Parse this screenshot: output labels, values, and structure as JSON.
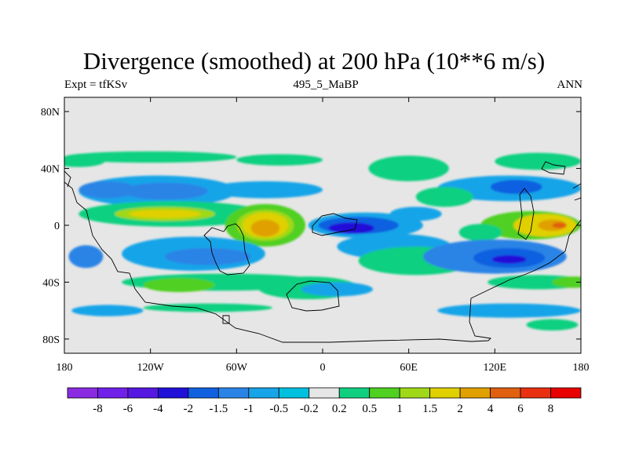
{
  "chart_data": {
    "type": "heatmap",
    "title": "Divergence (smoothed) at 200 hPa (10**6 m/s)",
    "subtitle_left": "Expt = tfKSv",
    "subtitle_center": "495_5_MaBP",
    "subtitle_right": "ANN",
    "xlim": [
      -180,
      180
    ],
    "ylim": [
      -90,
      90
    ],
    "x_ticks": [
      {
        "value": -180,
        "label": "180"
      },
      {
        "value": -120,
        "label": "120W"
      },
      {
        "value": -60,
        "label": "60W"
      },
      {
        "value": 0,
        "label": "0"
      },
      {
        "value": 60,
        "label": "60E"
      },
      {
        "value": 120,
        "label": "120E"
      },
      {
        "value": 180,
        "label": "180"
      }
    ],
    "y_ticks": [
      {
        "value": 80,
        "label": "80N"
      },
      {
        "value": 40,
        "label": "40N"
      },
      {
        "value": 0,
        "label": "0"
      },
      {
        "value": -40,
        "label": "40S"
      },
      {
        "value": -80,
        "label": "80S"
      }
    ],
    "colorbar": {
      "colors": [
        "#8a2be2",
        "#7020e8",
        "#5418e0",
        "#2010d8",
        "#1060e0",
        "#2a84e6",
        "#18a4e8",
        "#00c0e0",
        "#e6e6e6",
        "#10d080",
        "#50d020",
        "#a0d818",
        "#e0d000",
        "#e0a000",
        "#e06010",
        "#e83010",
        "#e80000"
      ],
      "labels": [
        "-8",
        "-6",
        "-4",
        "-2",
        "-1.5",
        "-1",
        "-0.5",
        "-0.2",
        "0.2",
        "0.5",
        "1",
        "1.5",
        "2",
        "4",
        "6",
        "8"
      ]
    },
    "field_blobs": [
      {
        "lon": -170,
        "lat": 45,
        "rlon": 18,
        "rlat": 4,
        "value": 0.5
      },
      {
        "lon": -120,
        "lat": 48,
        "rlon": 60,
        "rlat": 4,
        "value": 0.5
      },
      {
        "lon": -30,
        "lat": 46,
        "rlon": 30,
        "rlat": 4,
        "value": 0.5
      },
      {
        "lon": 60,
        "lat": 40,
        "rlon": 28,
        "rlat": 9,
        "value": 0.5
      },
      {
        "lon": 150,
        "lat": 45,
        "rlon": 30,
        "rlat": 6,
        "value": 0.5
      },
      {
        "lon": -115,
        "lat": 24,
        "rlon": 55,
        "rlat": 11,
        "value": -0.5
      },
      {
        "lon": -110,
        "lat": 24,
        "rlon": 30,
        "rlat": 6,
        "value": -1
      },
      {
        "lon": -150,
        "lat": 25,
        "rlon": 20,
        "rlat": 6,
        "value": -1
      },
      {
        "lon": -40,
        "lat": 25,
        "rlon": 40,
        "rlat": 6,
        "value": -0.5
      },
      {
        "lon": 130,
        "lat": 26,
        "rlon": 50,
        "rlat": 9,
        "value": -0.5
      },
      {
        "lon": 135,
        "lat": 27,
        "rlon": 18,
        "rlat": 5,
        "value": -1.5
      },
      {
        "lon": 85,
        "lat": 20,
        "rlon": 20,
        "rlat": 7,
        "value": 0.5
      },
      {
        "lon": -105,
        "lat": 8,
        "rlon": 65,
        "rlat": 9,
        "value": 0.5
      },
      {
        "lon": -110,
        "lat": 8,
        "rlon": 35,
        "rlat": 5,
        "value": 1.5
      },
      {
        "lon": -110,
        "lat": 8,
        "rlon": 25,
        "rlat": 3,
        "value": 2
      },
      {
        "lon": -40,
        "lat": 0,
        "rlon": 28,
        "rlat": 15,
        "value": 1
      },
      {
        "lon": -40,
        "lat": 0,
        "rlon": 20,
        "rlat": 11,
        "value": 1.5
      },
      {
        "lon": -40,
        "lat": 0,
        "rlon": 16,
        "rlat": 9,
        "value": 2
      },
      {
        "lon": -40,
        "lat": -2,
        "rlon": 10,
        "rlat": 6,
        "value": 4
      },
      {
        "lon": 30,
        "lat": 0,
        "rlon": 40,
        "rlat": 9,
        "value": -0.5
      },
      {
        "lon": 25,
        "lat": 0,
        "rlon": 28,
        "rlat": 6,
        "value": -1.5
      },
      {
        "lon": 20,
        "lat": -2,
        "rlon": 16,
        "rlat": 4,
        "value": -2
      },
      {
        "lon": 65,
        "lat": 8,
        "rlon": 18,
        "rlat": 5,
        "value": -0.5
      },
      {
        "lon": 145,
        "lat": 0,
        "rlon": 35,
        "rlat": 10,
        "value": 1
      },
      {
        "lon": 155,
        "lat": 0,
        "rlon": 22,
        "rlat": 8,
        "value": 2
      },
      {
        "lon": 160,
        "lat": 0,
        "rlon": 10,
        "rlat": 4,
        "value": 4
      },
      {
        "lon": 165,
        "lat": 0,
        "rlon": 5,
        "rlat": 2,
        "value": 6
      },
      {
        "lon": 110,
        "lat": -5,
        "rlon": 15,
        "rlat": 6,
        "value": 0.5
      },
      {
        "lon": -90,
        "lat": -20,
        "rlon": 50,
        "rlat": 12,
        "value": -0.5
      },
      {
        "lon": -80,
        "lat": -22,
        "rlon": 30,
        "rlat": 6,
        "value": -1
      },
      {
        "lon": 50,
        "lat": -15,
        "rlon": 40,
        "rlat": 9,
        "value": -0.5
      },
      {
        "lon": 65,
        "lat": -25,
        "rlon": 40,
        "rlat": 10,
        "value": 0.5
      },
      {
        "lon": 120,
        "lat": -22,
        "rlon": 50,
        "rlat": 12,
        "value": -1
      },
      {
        "lon": 130,
        "lat": -23,
        "rlon": 25,
        "rlat": 7,
        "value": -1.5
      },
      {
        "lon": 130,
        "lat": -24,
        "rlon": 12,
        "rlat": 3,
        "value": -2
      },
      {
        "lon": -165,
        "lat": -22,
        "rlon": 12,
        "rlat": 8,
        "value": -1
      },
      {
        "lon": -70,
        "lat": -40,
        "rlon": 70,
        "rlat": 6,
        "value": 0.5
      },
      {
        "lon": -100,
        "lat": -42,
        "rlon": 25,
        "rlat": 5,
        "value": 1
      },
      {
        "lon": -10,
        "lat": -44,
        "rlon": 35,
        "rlat": 8,
        "value": 0.5
      },
      {
        "lon": 10,
        "lat": -45,
        "rlon": 25,
        "rlat": 5,
        "value": -0.5
      },
      {
        "lon": 150,
        "lat": -40,
        "rlon": 35,
        "rlat": 5,
        "value": 0.5
      },
      {
        "lon": 175,
        "lat": -40,
        "rlon": 15,
        "rlat": 4,
        "value": 1
      },
      {
        "lon": -150,
        "lat": -60,
        "rlon": 25,
        "rlat": 4,
        "value": -0.5
      },
      {
        "lon": -80,
        "lat": -58,
        "rlon": 45,
        "rlat": 3,
        "value": 0.5
      },
      {
        "lon": 130,
        "lat": -60,
        "rlon": 50,
        "rlat": 5,
        "value": -0.5
      },
      {
        "lon": 160,
        "lat": -70,
        "rlon": 18,
        "rlat": 4,
        "value": 0.5
      }
    ]
  }
}
